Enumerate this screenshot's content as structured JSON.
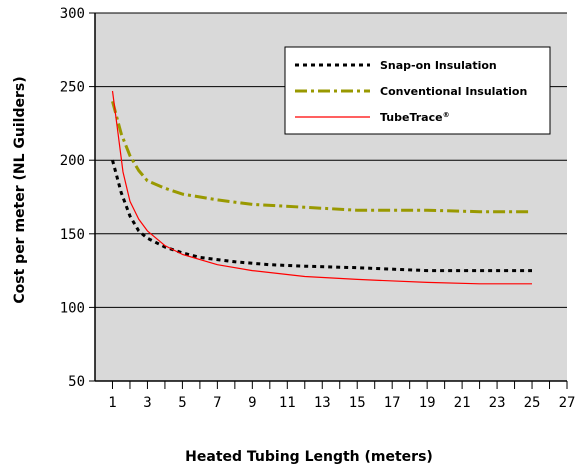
{
  "chart_data": {
    "type": "line",
    "title": "",
    "xlabel": "Heated Tubing Length (meters)",
    "ylabel": "Cost per meter (NL Guilders)",
    "xlim": [
      0,
      27
    ],
    "ylim": [
      50,
      300
    ],
    "x_ticks": [
      1,
      3,
      5,
      7,
      9,
      11,
      13,
      15,
      17,
      19,
      21,
      23,
      25,
      27
    ],
    "y_ticks": [
      50,
      100,
      150,
      200,
      250,
      300
    ],
    "grid": "horizontal",
    "plot_background": "#d9d9d9",
    "legend_position": "top-right",
    "series": [
      {
        "name": "Snap-on Insulation",
        "color": "#000000",
        "style": "dotted",
        "x": [
          1,
          1.5,
          2,
          2.5,
          3,
          4,
          5,
          6,
          8,
          10,
          12,
          15,
          19,
          25
        ],
        "y": [
          200,
          178,
          162,
          152,
          147,
          141,
          137,
          134,
          131,
          129,
          128,
          127,
          125,
          125
        ]
      },
      {
        "name": "Conventional Insulation",
        "color": "#999900",
        "style": "dash-dot",
        "x": [
          1,
          1.5,
          2,
          2.5,
          3,
          4,
          5,
          7,
          9,
          12,
          15,
          19,
          22,
          25
        ],
        "y": [
          240,
          218,
          203,
          193,
          186,
          181,
          177,
          173,
          170,
          168,
          166,
          166,
          165,
          165
        ]
      },
      {
        "name": "TubeTrace",
        "name_suffix": "®",
        "color": "#ff0000",
        "style": "solid",
        "x": [
          1,
          1.3,
          1.6,
          2,
          2.5,
          3,
          4,
          5,
          7,
          9,
          12,
          15,
          19,
          22,
          25
        ],
        "y": [
          247,
          220,
          192,
          172,
          160,
          152,
          142,
          136,
          129,
          125,
          121,
          119,
          117,
          116,
          116
        ]
      }
    ]
  }
}
